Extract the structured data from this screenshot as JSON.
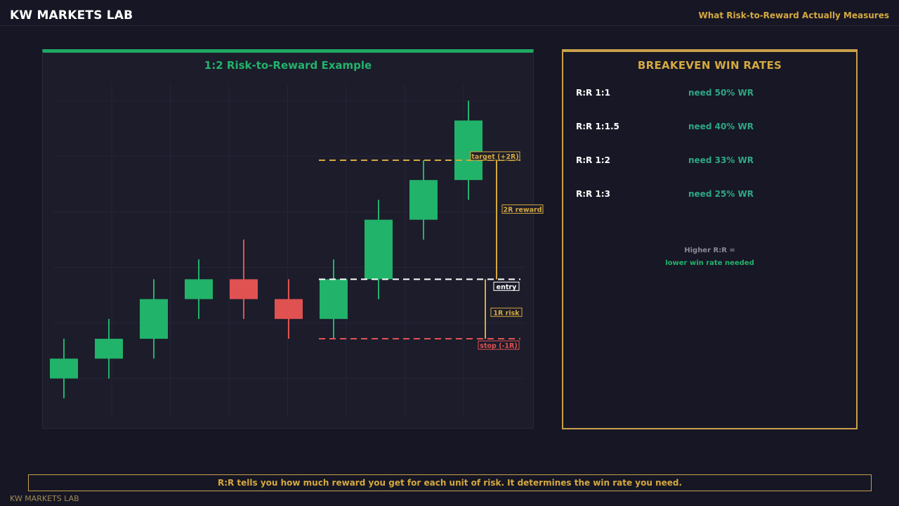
{
  "header": {
    "brand": "KW MARKETS LAB",
    "subtitle": "What Risk-to-Reward Actually Measures"
  },
  "chart_data": {
    "type": "candlestick",
    "title": "1:2 Risk-to-Reward Example",
    "xlabel": "",
    "ylabel": "",
    "grid": true,
    "ylim": [
      0,
      17
    ],
    "candles": [
      {
        "open": 2.0,
        "close": 3.0,
        "high": 4.0,
        "low": 1.0,
        "color": "#22b36a"
      },
      {
        "open": 3.0,
        "close": 4.0,
        "high": 5.0,
        "low": 2.0,
        "color": "#22b36a"
      },
      {
        "open": 4.0,
        "close": 6.0,
        "high": 7.0,
        "low": 3.0,
        "color": "#22b36a"
      },
      {
        "open": 6.0,
        "close": 7.0,
        "high": 8.0,
        "low": 5.0,
        "color": "#22b36a"
      },
      {
        "open": 7.0,
        "close": 6.0,
        "high": 9.0,
        "low": 5.0,
        "color": "#e05252"
      },
      {
        "open": 6.0,
        "close": 5.0,
        "high": 7.0,
        "low": 4.0,
        "color": "#e05252"
      },
      {
        "open": 5.0,
        "close": 7.0,
        "high": 8.0,
        "low": 4.0,
        "color": "#22b36a"
      },
      {
        "open": 7.0,
        "close": 10.0,
        "high": 11.0,
        "low": 6.0,
        "color": "#22b36a"
      },
      {
        "open": 10.0,
        "close": 12.0,
        "high": 13.0,
        "low": 9.0,
        "color": "#22b36a"
      },
      {
        "open": 12.0,
        "close": 15.0,
        "high": 16.0,
        "low": 11.0,
        "color": "#22b36a"
      }
    ],
    "levels": {
      "entry": {
        "value": 7.0,
        "label": "entry",
        "color": "#ffffff"
      },
      "target": {
        "value": 13.0,
        "label": "target (+2R)",
        "color": "#d4a93f"
      },
      "stop": {
        "value": 4.0,
        "label": "stop (-1R)",
        "color": "#e05252"
      }
    },
    "annotations": {
      "reward": {
        "label": "2R reward",
        "color": "#d4a93f"
      },
      "risk": {
        "label": "1R risk",
        "color": "#d4a93f"
      }
    }
  },
  "rates": {
    "title": "BREAKEVEN WIN RATES",
    "rows": [
      {
        "label": "R:R 1:1",
        "value": "need 50% WR"
      },
      {
        "label": "R:R 1:1.5",
        "value": "need 40% WR"
      },
      {
        "label": "R:R 1:2",
        "value": "need 33% WR"
      },
      {
        "label": "R:R 1:3",
        "value": "need 25% WR"
      }
    ],
    "note_line1": "Higher R:R =",
    "note_line2": "lower win rate needed"
  },
  "footer": {
    "text": "R:R tells you how much reward you get for each unit of risk. It determines the win rate you need.",
    "watermark": "KW MARKETS LAB"
  },
  "colors": {
    "accent_green": "#22b36a",
    "accent_red": "#e05252",
    "accent_gold": "#d4a93f",
    "background": "#161624"
  }
}
